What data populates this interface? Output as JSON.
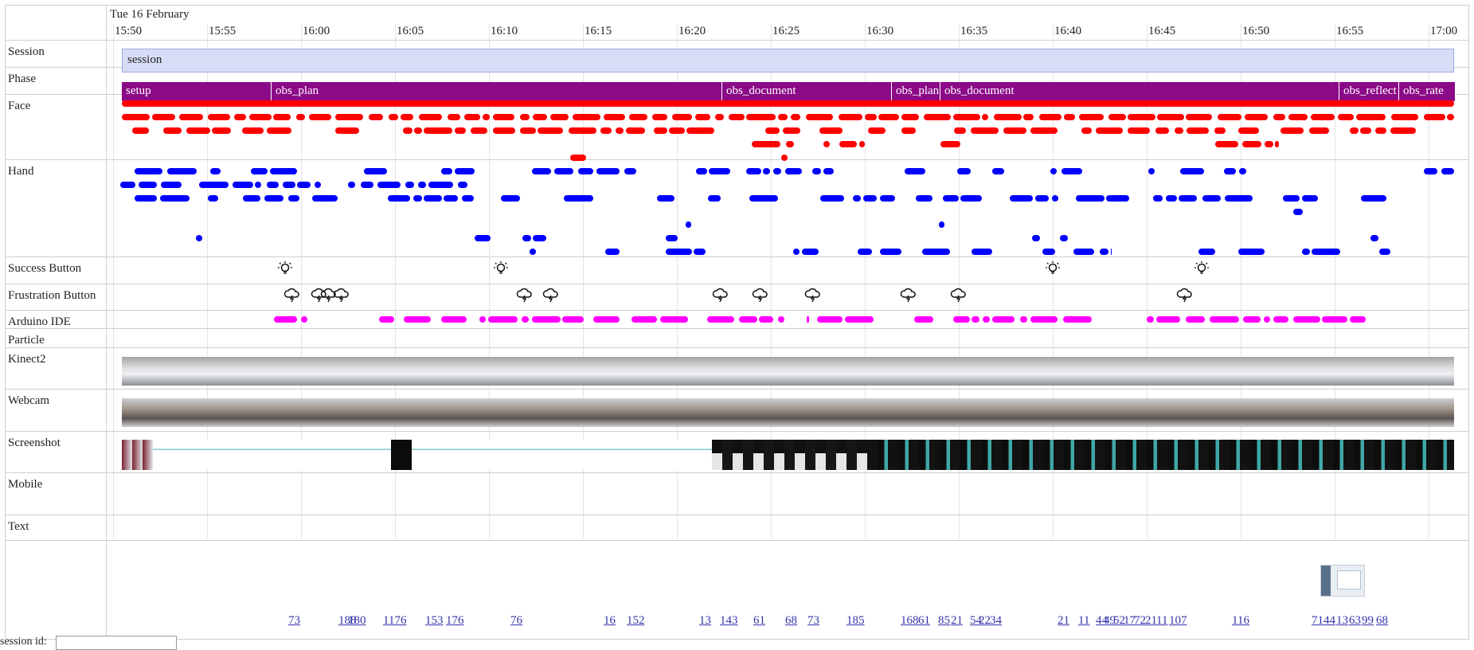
{
  "date_label": "Tue 16 February",
  "ticks": [
    "15:50",
    "15:55",
    "16:00",
    "16:05",
    "16:10",
    "16:15",
    "16:20",
    "16:25",
    "16:30",
    "16:35",
    "16:40",
    "16:45",
    "16:50",
    "16:55",
    "17:00"
  ],
  "rows": [
    {
      "key": "session",
      "label": "Session"
    },
    {
      "key": "phase",
      "label": "Phase"
    },
    {
      "key": "face",
      "label": "Face"
    },
    {
      "key": "hand",
      "label": "Hand"
    },
    {
      "key": "success",
      "label": "Success Button"
    },
    {
      "key": "frustration",
      "label": "Frustration Button"
    },
    {
      "key": "arduino",
      "label": "Arduino IDE"
    },
    {
      "key": "particle",
      "label": "Particle"
    },
    {
      "key": "kinect",
      "label": "Kinect2"
    },
    {
      "key": "webcam",
      "label": "Webcam"
    },
    {
      "key": "screenshot",
      "label": "Screenshot"
    },
    {
      "key": "mobile",
      "label": "Mobile"
    },
    {
      "key": "text",
      "label": "Text"
    }
  ],
  "session": {
    "label": "session"
  },
  "phases": [
    {
      "label": "setup"
    },
    {
      "label": "obs_plan"
    },
    {
      "label": "obs_document"
    },
    {
      "label": "obs_plan"
    },
    {
      "label": "obs_document"
    },
    {
      "label": "obs_reflect"
    },
    {
      "label": "obs_rate"
    }
  ],
  "success_icon": "lightbulb-icon",
  "frustration_icon": "storm-cloud-icon",
  "text_labels": [
    "73",
    "188",
    "180",
    "1176",
    "153",
    "176",
    "76",
    "16",
    "152",
    "13",
    "143",
    "61",
    "68",
    "73",
    "185",
    "168",
    "61",
    "85",
    "21",
    "54",
    "22",
    "34",
    "21",
    "11",
    "44",
    "49",
    "52",
    "17",
    "72",
    "21",
    "11",
    "107",
    "116",
    "71",
    "44",
    "13",
    "63",
    "99",
    "68"
  ],
  "session_id": {
    "label": "session id:",
    "value": ""
  },
  "colors": {
    "face": "#ff0000",
    "hand": "#0000ff",
    "arduino": "#ff00ff",
    "phase": "#8b0a87",
    "session": "#d7ddf5",
    "link": "#3333aa"
  }
}
